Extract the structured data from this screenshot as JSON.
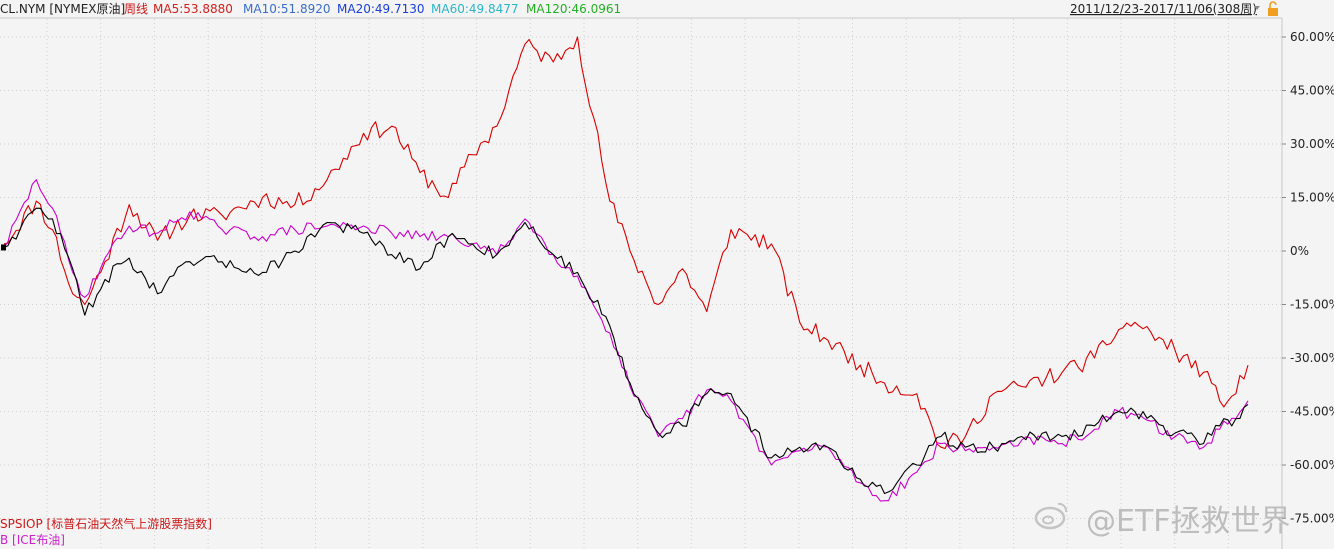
{
  "header": {
    "symbol": "CL.NYM [NYMEX原油]",
    "period": "周线",
    "ma": [
      {
        "label": "MA5:53.8880",
        "color": "#d42020"
      },
      {
        "label": "MA10:51.8920",
        "color": "#3a6ec8"
      },
      {
        "label": "MA20:49.7130",
        "color": "#1a3fd6"
      },
      {
        "label": "MA60:49.8477",
        "color": "#2bb6c8"
      },
      {
        "label": "MA120:46.0961",
        "color": "#22b022"
      }
    ],
    "date_range": "2011/12/23-2017/11/06(308周)",
    "lock_icon": "lock-icon",
    "dropdown_icon": "chevron-down-icon"
  },
  "legend": {
    "items": [
      {
        "label": "SPSIOP [标普石油天然气上游股票指数]",
        "color": "#cc1818"
      },
      {
        "label": "B [ICE布油]",
        "color": "#cc22cc"
      }
    ]
  },
  "watermark": "@ETF拯救世界",
  "chart_data": {
    "type": "line",
    "x_range": [
      "2011/12/23",
      "2017/11/06"
    ],
    "x_count": 308,
    "y_unit": "%",
    "ylim": [
      -76,
      70
    ],
    "y_ticks": [
      60,
      45,
      30,
      15,
      0,
      -15,
      -30,
      -45,
      -60,
      -75
    ],
    "y_tick_labels": [
      "60.00%",
      "45.00%",
      "30.00%",
      "15.00%",
      "0%",
      "-15.00%",
      "-30.00%",
      "-45.00%",
      "-60.00%",
      "-75.00%"
    ],
    "grid": true,
    "series": [
      {
        "name": "SPSIOP [标普石油天然气上游股票指数]",
        "color": "#d80000",
        "anchors": [
          [
            0,
            2
          ],
          [
            8,
            14
          ],
          [
            12,
            6
          ],
          [
            17,
            -12
          ],
          [
            20,
            -15
          ],
          [
            25,
            -3
          ],
          [
            31,
            13
          ],
          [
            38,
            3
          ],
          [
            46,
            10
          ],
          [
            54,
            10
          ],
          [
            64,
            15
          ],
          [
            72,
            13
          ],
          [
            80,
            20
          ],
          [
            89,
            33
          ],
          [
            96,
            35
          ],
          [
            103,
            22
          ],
          [
            110,
            15
          ],
          [
            116,
            27
          ],
          [
            122,
            35
          ],
          [
            129,
            58
          ],
          [
            136,
            53
          ],
          [
            142,
            60
          ],
          [
            150,
            14
          ],
          [
            155,
            0
          ],
          [
            162,
            -15
          ],
          [
            168,
            -5
          ],
          [
            174,
            -17
          ],
          [
            180,
            6
          ],
          [
            190,
            2
          ],
          [
            197,
            -20
          ],
          [
            204,
            -25
          ],
          [
            212,
            -32
          ],
          [
            218,
            -37
          ],
          [
            226,
            -40
          ],
          [
            232,
            -55
          ],
          [
            238,
            -52
          ],
          [
            245,
            -40
          ],
          [
            252,
            -38
          ],
          [
            262,
            -34
          ],
          [
            270,
            -30
          ],
          [
            276,
            -22
          ],
          [
            280,
            -20
          ],
          [
            290,
            -28
          ],
          [
            297,
            -34
          ],
          [
            301,
            -42
          ],
          [
            305,
            -40
          ],
          [
            308,
            -32
          ]
        ]
      },
      {
        "name": "B [ICE布油]",
        "color": "#cc00cc",
        "anchors": [
          [
            0,
            1
          ],
          [
            8,
            20
          ],
          [
            12,
            12
          ],
          [
            17,
            -6
          ],
          [
            20,
            -13
          ],
          [
            25,
            -2
          ],
          [
            31,
            7
          ],
          [
            38,
            5
          ],
          [
            46,
            11
          ],
          [
            54,
            6
          ],
          [
            64,
            4
          ],
          [
            72,
            6
          ],
          [
            80,
            7
          ],
          [
            89,
            7
          ],
          [
            96,
            5
          ],
          [
            103,
            4
          ],
          [
            110,
            4
          ],
          [
            116,
            2
          ],
          [
            122,
            -1
          ],
          [
            129,
            9
          ],
          [
            136,
            -1
          ],
          [
            142,
            -7
          ],
          [
            150,
            -23
          ],
          [
            155,
            -38
          ],
          [
            162,
            -52
          ],
          [
            168,
            -47
          ],
          [
            174,
            -39
          ],
          [
            180,
            -42
          ],
          [
            190,
            -60
          ],
          [
            197,
            -56
          ],
          [
            204,
            -55
          ],
          [
            212,
            -65
          ],
          [
            218,
            -70
          ],
          [
            226,
            -62
          ],
          [
            232,
            -54
          ],
          [
            238,
            -56
          ],
          [
            245,
            -55
          ],
          [
            252,
            -53
          ],
          [
            262,
            -54
          ],
          [
            270,
            -50
          ],
          [
            276,
            -45
          ],
          [
            280,
            -46
          ],
          [
            290,
            -52
          ],
          [
            297,
            -55
          ],
          [
            301,
            -50
          ],
          [
            305,
            -47
          ],
          [
            308,
            -42
          ]
        ]
      },
      {
        "name": "CL.NYM [NYMEX原油]",
        "color": "#000000",
        "anchors": [
          [
            0,
            1
          ],
          [
            8,
            12
          ],
          [
            12,
            9
          ],
          [
            17,
            -5
          ],
          [
            20,
            -18
          ],
          [
            25,
            -8
          ],
          [
            31,
            -2
          ],
          [
            38,
            -12
          ],
          [
            46,
            -3
          ],
          [
            54,
            -3
          ],
          [
            64,
            -6
          ],
          [
            72,
            0
          ],
          [
            80,
            8
          ],
          [
            89,
            5
          ],
          [
            96,
            -1
          ],
          [
            103,
            -5
          ],
          [
            110,
            4
          ],
          [
            116,
            2
          ],
          [
            122,
            -1
          ],
          [
            129,
            8
          ],
          [
            136,
            -1
          ],
          [
            142,
            -6
          ],
          [
            150,
            -21
          ],
          [
            155,
            -37
          ],
          [
            162,
            -51
          ],
          [
            168,
            -49
          ],
          [
            174,
            -40
          ],
          [
            180,
            -40
          ],
          [
            190,
            -58
          ],
          [
            197,
            -55
          ],
          [
            204,
            -55
          ],
          [
            212,
            -64
          ],
          [
            218,
            -68
          ],
          [
            226,
            -60
          ],
          [
            232,
            -52
          ],
          [
            238,
            -55
          ],
          [
            245,
            -55
          ],
          [
            252,
            -52
          ],
          [
            262,
            -52
          ],
          [
            270,
            -49
          ],
          [
            276,
            -45
          ],
          [
            280,
            -45
          ],
          [
            290,
            -51
          ],
          [
            297,
            -54
          ],
          [
            301,
            -49
          ],
          [
            305,
            -47
          ],
          [
            308,
            -43
          ]
        ]
      }
    ]
  }
}
